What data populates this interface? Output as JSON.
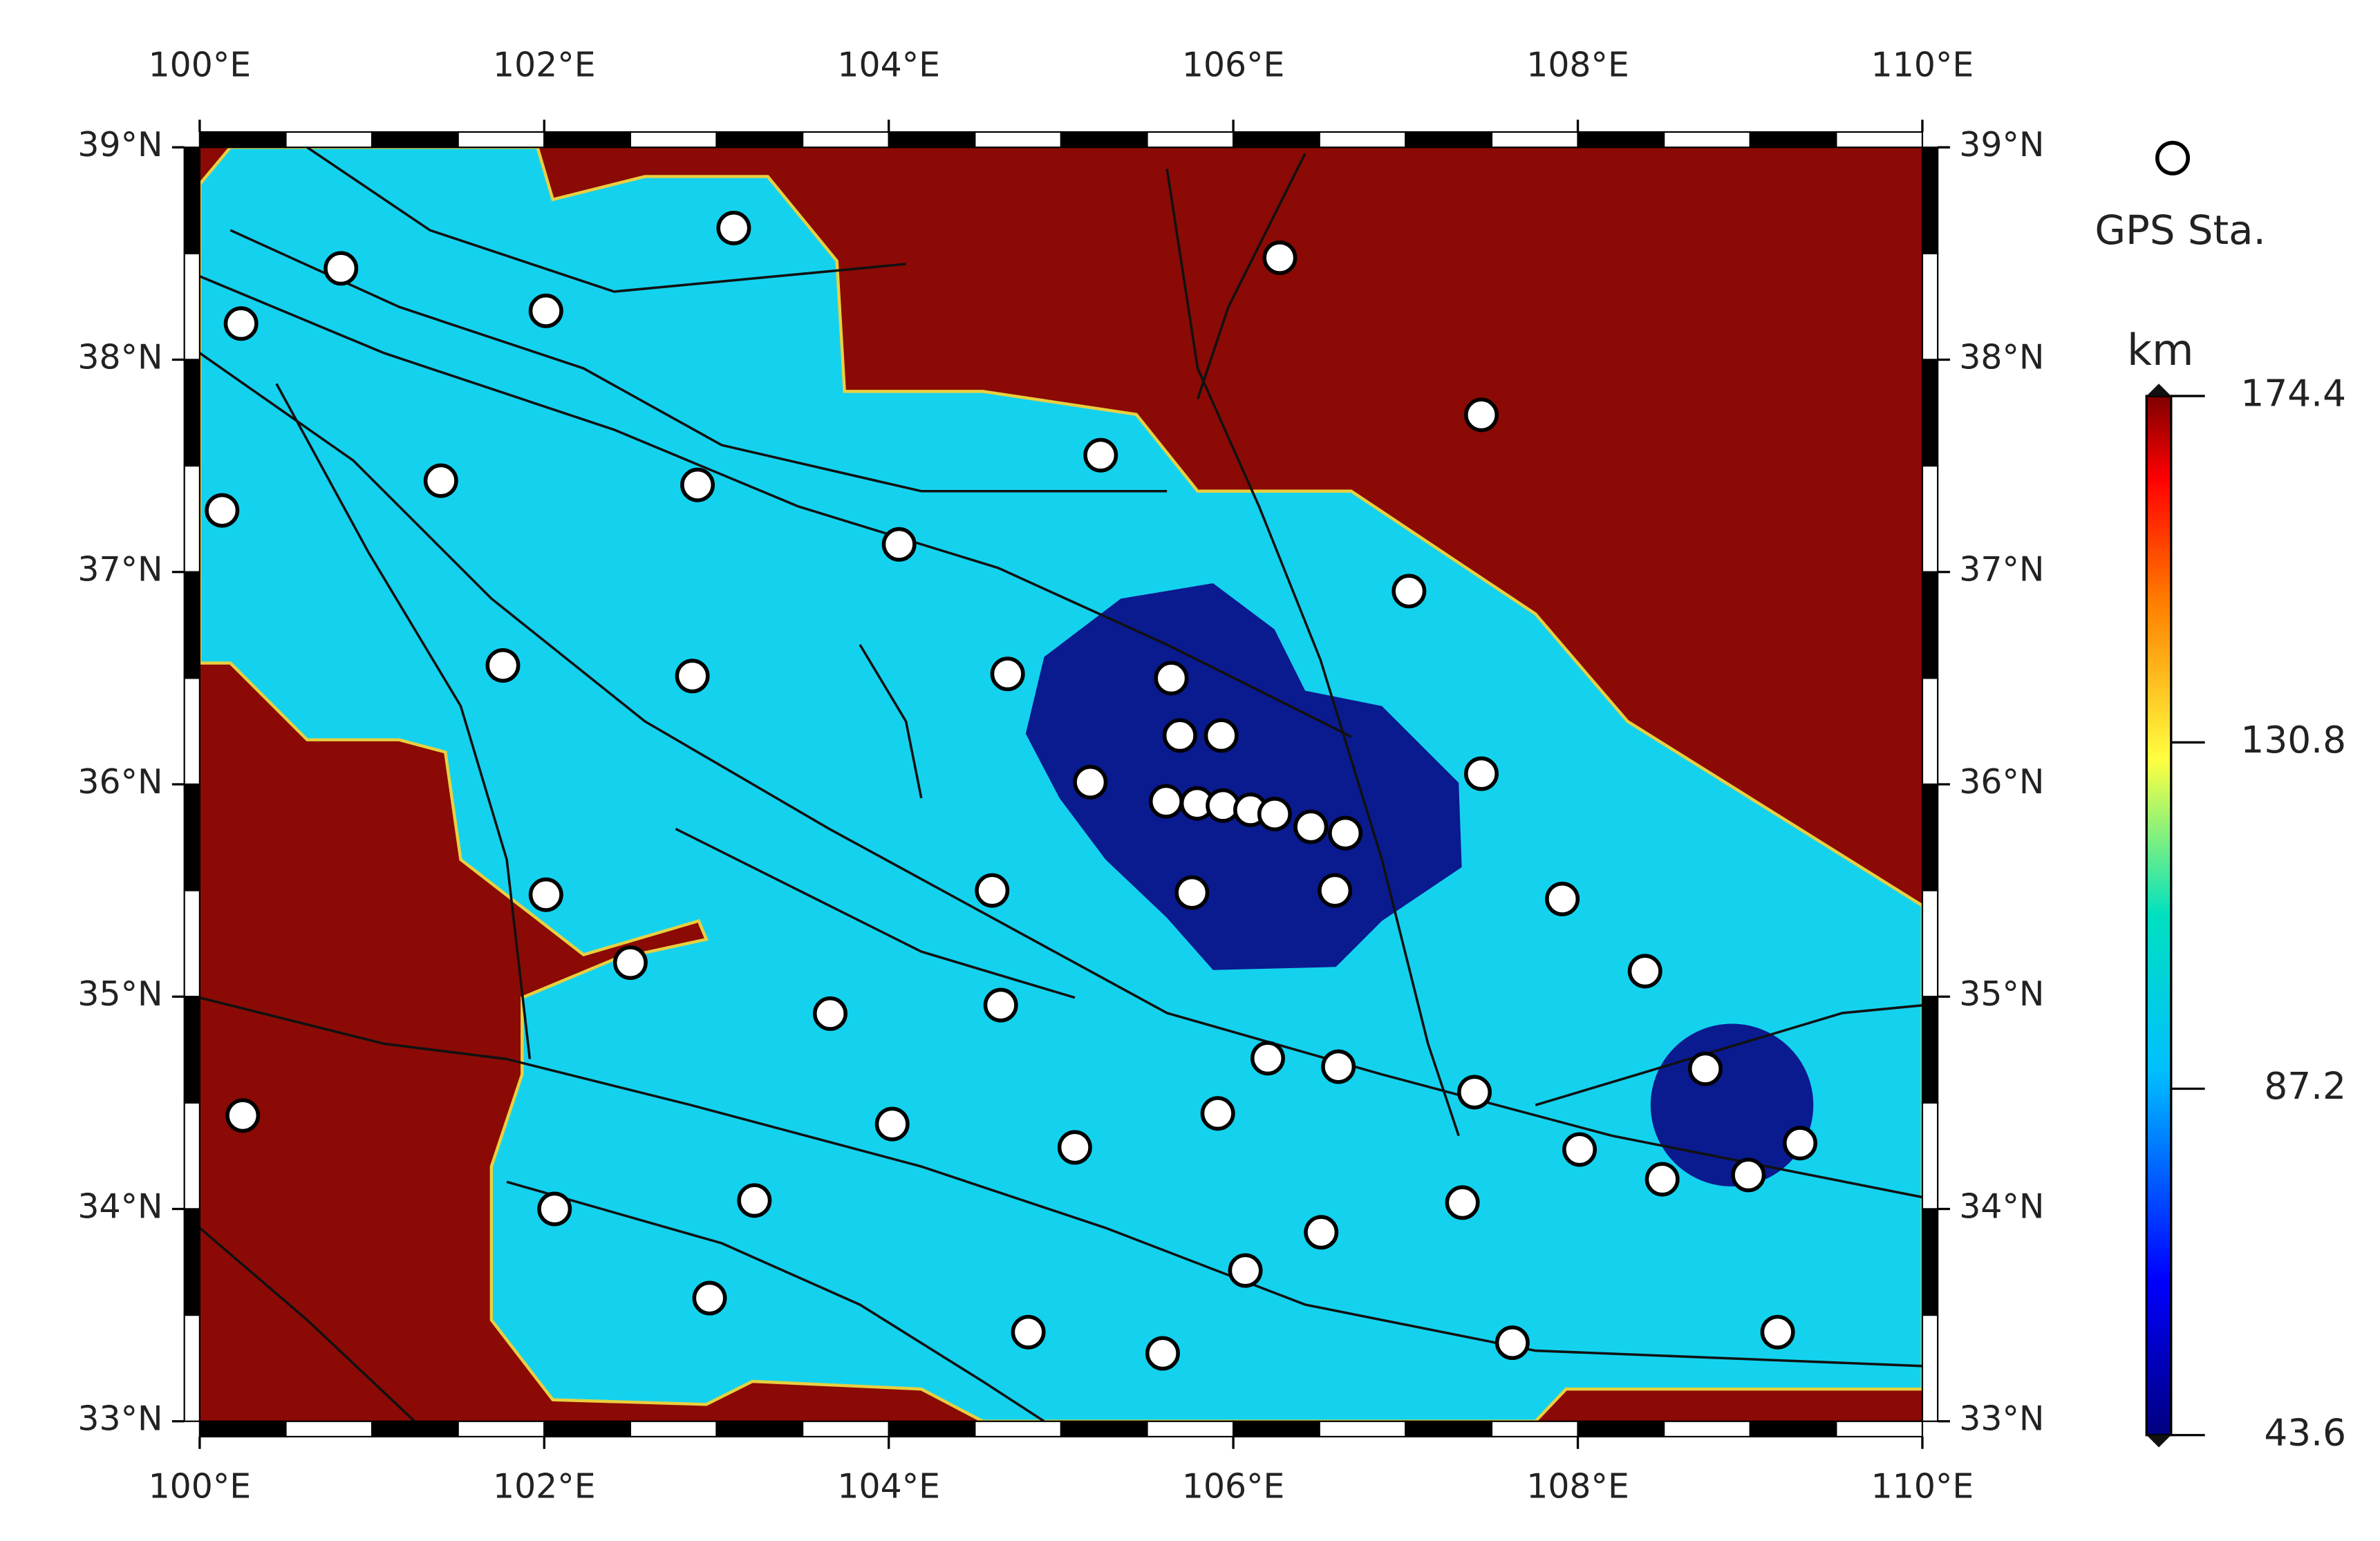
{
  "chart_data": {
    "type": "scatter",
    "legend_label": "GPS Sta.",
    "colorbar": {
      "label": "km",
      "lim": [
        43.6,
        174.4
      ],
      "ticks": [
        174.4,
        130.8,
        87.2,
        43.6
      ]
    },
    "xlim": [
      100,
      110
    ],
    "ylim": [
      33,
      39
    ],
    "xticks": [
      {
        "value": 100,
        "label": "100°E"
      },
      {
        "value": 102,
        "label": "102°E"
      },
      {
        "value": 104,
        "label": "104°E"
      },
      {
        "value": 106,
        "label": "106°E"
      },
      {
        "value": 108,
        "label": "108°E"
      },
      {
        "value": 110,
        "label": "110°E"
      }
    ],
    "yticks": [
      {
        "value": 33,
        "label": "33°N"
      },
      {
        "value": 34,
        "label": "34°N"
      },
      {
        "value": 35,
        "label": "35°N"
      },
      {
        "value": 36,
        "label": "36°N"
      },
      {
        "value": 37,
        "label": "37°N"
      },
      {
        "value": 38,
        "label": "38°N"
      },
      {
        "value": 39,
        "label": "39°N"
      }
    ],
    "x": [
      103.1,
      106.27,
      100.82,
      100.24,
      102.01,
      107.44,
      105.23,
      101.4,
      102.89,
      100.13,
      104.06,
      107.02,
      101.76,
      102.86,
      104.69,
      105.64,
      105.69,
      105.93,
      105.17,
      105.61,
      105.79,
      105.94,
      106.1,
      106.24,
      106.45,
      106.65,
      107.44,
      102.01,
      104.6,
      105.76,
      106.59,
      107.91,
      102.5,
      108.39,
      103.66,
      104.65,
      106.2,
      106.61,
      108.74,
      100.25,
      107.4,
      104.02,
      105.08,
      105.91,
      108.01,
      109.29,
      108.49,
      108.99,
      102.06,
      103.22,
      107.33,
      106.51,
      106.07,
      102.96,
      104.81,
      105.59,
      107.62,
      109.16
    ],
    "values": [
      38.62,
      38.48,
      38.43,
      38.17,
      38.23,
      37.74,
      37.55,
      37.43,
      37.41,
      37.29,
      37.13,
      36.91,
      36.56,
      36.51,
      36.52,
      36.5,
      36.23,
      36.23,
      36.01,
      35.92,
      35.91,
      35.9,
      35.88,
      35.86,
      35.8,
      35.77,
      36.05,
      35.48,
      35.5,
      35.49,
      35.5,
      35.46,
      35.16,
      35.12,
      34.92,
      34.96,
      34.71,
      34.67,
      34.66,
      34.44,
      34.55,
      34.4,
      34.29,
      34.45,
      34.28,
      34.31,
      34.14,
      34.16,
      34.0,
      34.04,
      34.03,
      33.89,
      33.71,
      33.58,
      33.42,
      33.32,
      33.37,
      33.42
    ]
  }
}
